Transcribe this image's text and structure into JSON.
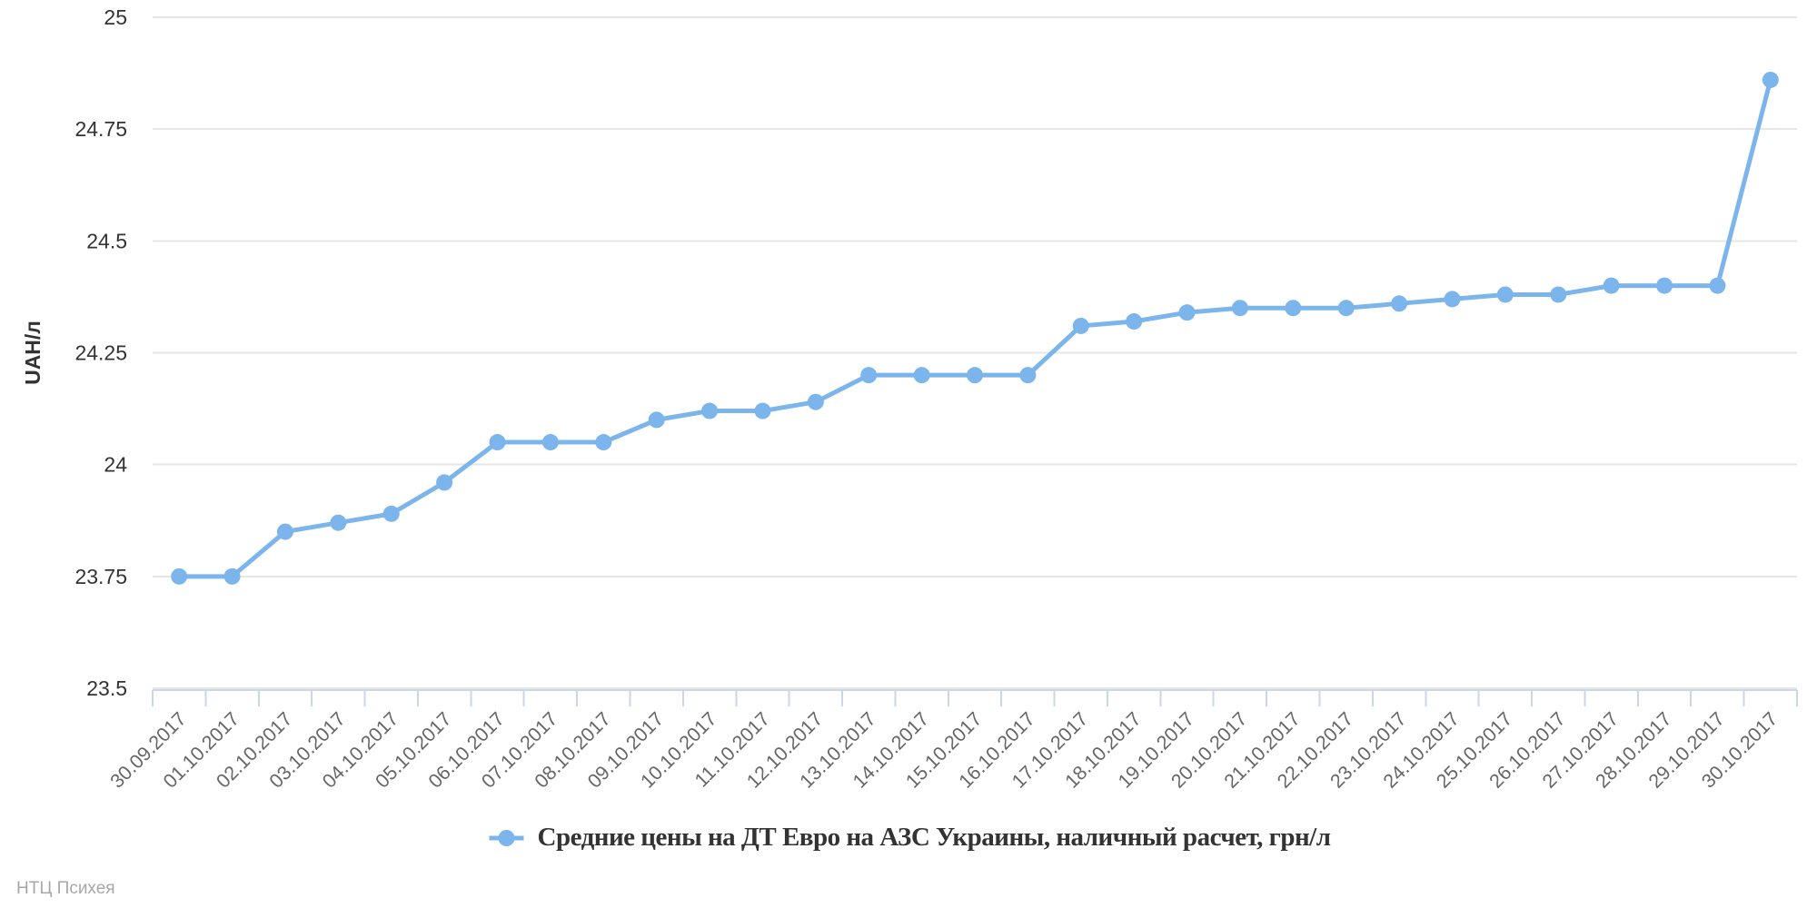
{
  "chart_data": {
    "type": "line",
    "categories": [
      "30.09.2017",
      "01.10.2017",
      "02.10.2017",
      "03.10.2017",
      "04.10.2017",
      "05.10.2017",
      "06.10.2017",
      "07.10.2017",
      "08.10.2017",
      "09.10.2017",
      "10.10.2017",
      "11.10.2017",
      "12.10.2017",
      "13.10.2017",
      "14.10.2017",
      "15.10.2017",
      "16.10.2017",
      "17.10.2017",
      "18.10.2017",
      "19.10.2017",
      "20.10.2017",
      "21.10.2017",
      "22.10.2017",
      "23.10.2017",
      "24.10.2017",
      "25.10.2017",
      "26.10.2017",
      "27.10.2017",
      "28.10.2017",
      "29.10.2017",
      "30.10.2017"
    ],
    "series": [
      {
        "name": "Средние цены на ДТ Евро на АЗС Украины, наличный расчет, грн/л",
        "values": [
          23.75,
          23.75,
          23.85,
          23.87,
          23.89,
          23.96,
          24.05,
          24.05,
          24.05,
          24.1,
          24.12,
          24.12,
          24.14,
          24.2,
          24.2,
          24.2,
          24.2,
          24.31,
          24.32,
          24.34,
          24.35,
          24.35,
          24.35,
          24.36,
          24.37,
          24.38,
          24.38,
          24.4,
          24.4,
          24.4,
          24.86
        ]
      }
    ],
    "title": "",
    "xlabel": "",
    "ylabel": "UAH/л",
    "ylim": [
      23.5,
      25
    ],
    "yticks": [
      23.5,
      23.75,
      24,
      24.25,
      24.5,
      24.75,
      25
    ],
    "grid": true,
    "legend_position": "bottom",
    "marker": "circle",
    "colors": {
      "line": "#7cb5ec",
      "gridline": "#e6e6e6",
      "axis_line": "#ccd6eb",
      "x_tick_label": "#666666",
      "y_tick_label": "#333333",
      "y_axis_title": "#333333",
      "legend_text": "#333333",
      "credit_text": "#a7a7a7"
    }
  },
  "footer": {
    "credit": "НТЦ Психея"
  }
}
